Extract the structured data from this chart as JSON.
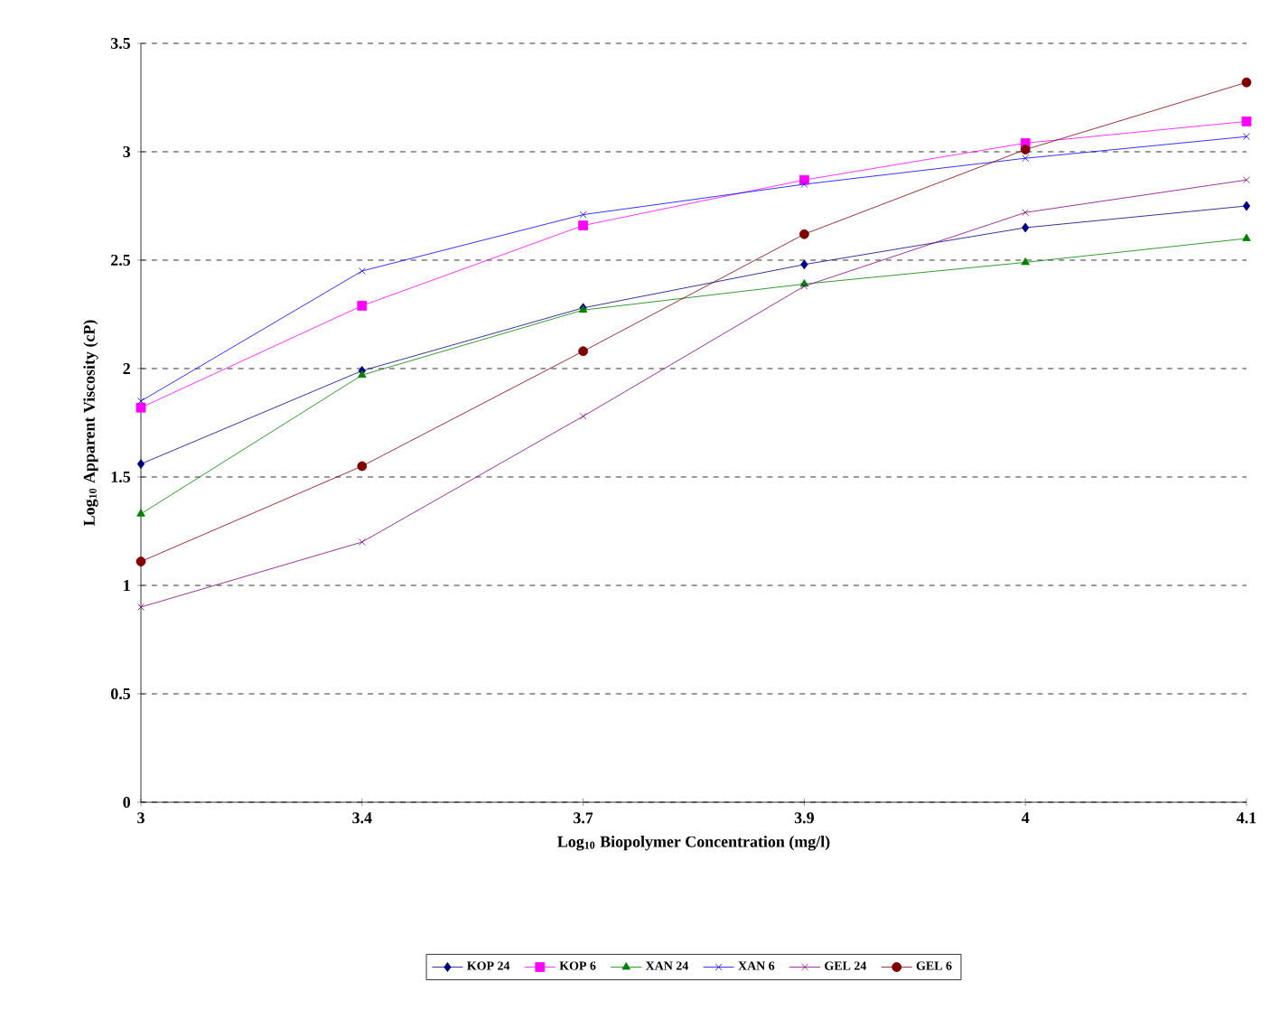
{
  "chart_data": {
    "type": "line",
    "xlabel": "Log$_{10}$ Biopolymer Concentration (mg/l)",
    "ylabel": "Log$_{10}$ Apparent Viscosity (cP)",
    "categories": [
      "3",
      "3.4",
      "3.7",
      "3.9",
      "4",
      "4.1"
    ],
    "ylim": [
      0,
      3.5
    ],
    "yticks": [
      0,
      0.5,
      1,
      1.5,
      2,
      2.5,
      3,
      3.5
    ],
    "grid": "y",
    "legend": "bottom",
    "series": [
      {
        "name": "KOP 24",
        "color": "#000080",
        "marker": "diamond",
        "values": [
          1.56,
          1.99,
          2.28,
          2.48,
          2.65,
          2.75
        ]
      },
      {
        "name": "KOP 6",
        "color": "#ff00ff",
        "marker": "square",
        "values": [
          1.82,
          2.29,
          2.66,
          2.87,
          3.04,
          3.14
        ]
      },
      {
        "name": "XAN 24",
        "color": "#008000",
        "marker": "triangle",
        "values": [
          1.33,
          1.97,
          2.27,
          2.39,
          2.49,
          2.6
        ]
      },
      {
        "name": "XAN 6",
        "color": "#0000ff",
        "marker": "cross",
        "values": [
          1.85,
          2.45,
          2.71,
          2.85,
          2.97,
          3.07
        ]
      },
      {
        "name": "GEL 24",
        "color": "#800080",
        "marker": "cross",
        "values": [
          0.9,
          1.2,
          1.78,
          2.38,
          2.72,
          2.87
        ]
      },
      {
        "name": "GEL 6",
        "color": "#800000",
        "marker": "circle",
        "values": [
          1.11,
          1.55,
          2.08,
          2.62,
          3.01,
          3.32
        ]
      }
    ]
  }
}
